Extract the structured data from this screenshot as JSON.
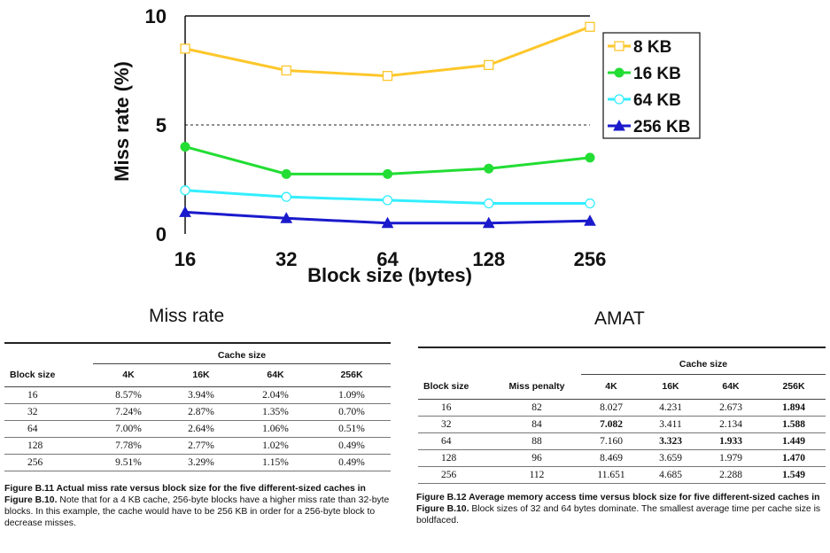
{
  "chart_data": {
    "type": "line",
    "x": [
      "16",
      "32",
      "64",
      "128",
      "256"
    ],
    "xlabel": "Block size (bytes)",
    "ylabel": "Miss rate (%)",
    "ylim": [
      0,
      10
    ],
    "yticks": [
      "0",
      "5",
      "10"
    ],
    "grid": "dashed horizontal line at 5",
    "legend_position": "right",
    "series": [
      {
        "name": "8 KB",
        "values": [
          8.5,
          7.5,
          7.25,
          7.75,
          9.5
        ],
        "color": "#FDC72B",
        "marker": "open-square"
      },
      {
        "name": "16 KB",
        "values": [
          4.0,
          2.75,
          2.75,
          3.0,
          3.5
        ],
        "color": "#22DD33",
        "marker": "filled-circle"
      },
      {
        "name": "64 KB",
        "values": [
          2.0,
          1.7,
          1.55,
          1.4,
          1.4
        ],
        "color": "#33EEFF",
        "marker": "open-circle"
      },
      {
        "name": "256 KB",
        "values": [
          1.0,
          0.72,
          0.5,
          0.5,
          0.6
        ],
        "color": "#1A1ACC",
        "marker": "filled-triangle"
      }
    ]
  },
  "labels": {
    "miss_rate_title": "Miss rate",
    "amat_title": "AMAT"
  },
  "table1": {
    "group_header": "Cache size",
    "headers": [
      "Block size",
      "4K",
      "16K",
      "64K",
      "256K"
    ],
    "rows": [
      [
        "16",
        "8.57%",
        "3.94%",
        "2.04%",
        "1.09%"
      ],
      [
        "32",
        "7.24%",
        "2.87%",
        "1.35%",
        "0.70%"
      ],
      [
        "64",
        "7.00%",
        "2.64%",
        "1.06%",
        "0.51%"
      ],
      [
        "128",
        "7.78%",
        "2.77%",
        "1.02%",
        "0.49%"
      ],
      [
        "256",
        "9.51%",
        "3.29%",
        "1.15%",
        "0.49%"
      ]
    ],
    "caption_bold": "Figure B.11  Actual miss rate versus block size for the five different-sized caches in Figure B.10.",
    "caption_text": "Note that for a 4 KB cache, 256-byte blocks have a higher miss rate than 32-byte blocks. In this example, the cache would have to be 256 KB in order for a 256-byte block to decrease misses."
  },
  "table2": {
    "group_header": "Cache size",
    "headers": [
      "Block size",
      "Miss penalty",
      "4K",
      "16K",
      "64K",
      "256K"
    ],
    "rows": [
      [
        "16",
        "82",
        "8.027",
        "4.231",
        "2.673",
        "1.894"
      ],
      [
        "32",
        "84",
        "7.082",
        "3.411",
        "2.134",
        "1.588"
      ],
      [
        "64",
        "88",
        "7.160",
        "3.323",
        "1.933",
        "1.449"
      ],
      [
        "128",
        "96",
        "8.469",
        "3.659",
        "1.979",
        "1.470"
      ],
      [
        "256",
        "112",
        "11.651",
        "4.685",
        "2.288",
        "1.549"
      ]
    ],
    "caption_bold": "Figure B.12  Average memory access time versus block size for five different-sized caches in Figure B.10.",
    "caption_text": "Block sizes of 32 and 64 bytes dominate. The smallest average time per cache size is boldfaced."
  }
}
